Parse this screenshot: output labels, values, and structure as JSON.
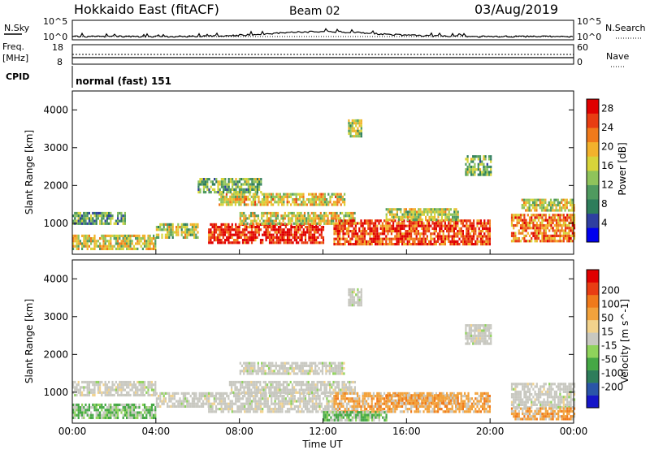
{
  "header": {
    "radar": "Hokkaido East (fitACF)",
    "beam": "Beam 02",
    "date": "03/Aug/2019"
  },
  "noise_panel": {
    "left_label": "N.Sky",
    "right_label": "N.Search",
    "top_tick": "10^5",
    "bottom_tick": "10^0"
  },
  "freq_panel": {
    "left_label_1": "Freq.",
    "left_label_2": "[MHz]",
    "left_top_tick": "18",
    "left_bottom_tick": "8",
    "right_label": "Nave",
    "right_top_tick": "60",
    "right_bottom_tick": "0"
  },
  "cpid_panel": {
    "label": "CPID",
    "mode": "normal (fast) 151"
  },
  "chart_data": [
    {
      "type": "heatmap",
      "title": "",
      "xlabel": "Time UT",
      "ylabel": "Slant Range [km]",
      "x_ticks": [
        "00:00",
        "04:00",
        "08:00",
        "12:00",
        "16:00",
        "20:00",
        "00:00"
      ],
      "xlim_hours": [
        0,
        24
      ],
      "y_ticks": [
        1000,
        2000,
        3000,
        4000
      ],
      "ylim": [
        180,
        4500
      ],
      "colorbar": {
        "label": "Power [dB]",
        "ticks": [
          4,
          8,
          12,
          16,
          20,
          24,
          28
        ],
        "range": [
          0,
          30
        ],
        "colors": [
          "#0000ee",
          "#2f3fa0",
          "#2e7d5b",
          "#4f9a5f",
          "#8fc35b",
          "#d7d43a",
          "#f2b22c",
          "#f07a1b",
          "#e83d12",
          "#e00000"
        ]
      },
      "echo_regions": [
        {
          "t0": 0.0,
          "t1": 2.5,
          "r0": 1000,
          "r1": 1300,
          "level": 0.35
        },
        {
          "t0": 0.0,
          "t1": 4.0,
          "r0": 300,
          "r1": 700,
          "level": 0.55
        },
        {
          "t0": 4.0,
          "t1": 6.0,
          "r0": 600,
          "r1": 1000,
          "level": 0.5
        },
        {
          "t0": 6.5,
          "t1": 12.0,
          "r0": 500,
          "r1": 1000,
          "level": 0.9
        },
        {
          "t0": 8.0,
          "t1": 13.5,
          "r0": 1000,
          "r1": 1300,
          "level": 0.55
        },
        {
          "t0": 7.0,
          "t1": 13.0,
          "r0": 1500,
          "r1": 1800,
          "level": 0.6
        },
        {
          "t0": 6.0,
          "t1": 9.0,
          "r0": 1850,
          "r1": 2200,
          "level": 0.4
        },
        {
          "t0": 12.5,
          "t1": 20.0,
          "r0": 450,
          "r1": 1100,
          "level": 0.85
        },
        {
          "t0": 15.0,
          "t1": 18.5,
          "r0": 1100,
          "r1": 1400,
          "level": 0.5
        },
        {
          "t0": 21.0,
          "t1": 24.0,
          "r0": 550,
          "r1": 1250,
          "level": 0.75
        },
        {
          "t0": 21.5,
          "t1": 24.0,
          "r0": 1350,
          "r1": 1650,
          "level": 0.55
        },
        {
          "t0": 13.2,
          "t1": 13.8,
          "r0": 3300,
          "r1": 3750,
          "level": 0.5
        },
        {
          "t0": 18.8,
          "t1": 20.0,
          "r0": 2300,
          "r1": 2800,
          "level": 0.4
        }
      ]
    },
    {
      "type": "heatmap",
      "title": "",
      "xlabel": "Time UT",
      "ylabel": "Slant Range [km]",
      "x_ticks": [
        "00:00",
        "04:00",
        "08:00",
        "12:00",
        "16:00",
        "20:00",
        "00:00"
      ],
      "xlim_hours": [
        0,
        24
      ],
      "y_ticks": [
        1000,
        2000,
        3000,
        4000
      ],
      "ylim": [
        180,
        4500
      ],
      "colorbar": {
        "label": "Velocity [m s^-1]",
        "ticks": [
          "200",
          "100",
          "50",
          "15",
          "-15",
          "-50",
          "-100",
          "-200"
        ],
        "colors": [
          "#1515c8",
          "#2a55a8",
          "#2e7d5b",
          "#45a845",
          "#8fd35b",
          "#c8c8c0",
          "#f2d28c",
          "#f2a23c",
          "#f07a1b",
          "#e83d12",
          "#e00000"
        ]
      },
      "echo_regions": [
        {
          "t0": 0.0,
          "t1": 4.0,
          "r0": 950,
          "r1": 1300,
          "kind": "gray"
        },
        {
          "t0": 0.0,
          "t1": 4.0,
          "r0": 300,
          "r1": 700,
          "kind": "green"
        },
        {
          "t0": 4.0,
          "t1": 6.5,
          "r0": 600,
          "r1": 1000,
          "kind": "gray"
        },
        {
          "t0": 6.5,
          "t1": 12.5,
          "r0": 500,
          "r1": 1000,
          "kind": "gray"
        },
        {
          "t0": 7.5,
          "t1": 13.5,
          "r0": 1000,
          "r1": 1300,
          "kind": "gray"
        },
        {
          "t0": 8.0,
          "t1": 13.0,
          "r0": 1500,
          "r1": 1800,
          "kind": "gray"
        },
        {
          "t0": 12.5,
          "t1": 20.0,
          "r0": 450,
          "r1": 1000,
          "kind": "orange"
        },
        {
          "t0": 15.0,
          "t1": 18.5,
          "r0": 700,
          "r1": 950,
          "kind": "orange"
        },
        {
          "t0": 12.0,
          "t1": 15.0,
          "r0": 250,
          "r1": 500,
          "kind": "green"
        },
        {
          "t0": 21.0,
          "t1": 24.0,
          "r0": 600,
          "r1": 1250,
          "kind": "gray"
        },
        {
          "t0": 21.0,
          "t1": 24.0,
          "r0": 300,
          "r1": 600,
          "kind": "orange"
        },
        {
          "t0": 13.2,
          "t1": 13.8,
          "r0": 3300,
          "r1": 3750,
          "kind": "gray"
        },
        {
          "t0": 18.8,
          "t1": 20.0,
          "r0": 2300,
          "r1": 2800,
          "kind": "gray"
        }
      ]
    }
  ]
}
